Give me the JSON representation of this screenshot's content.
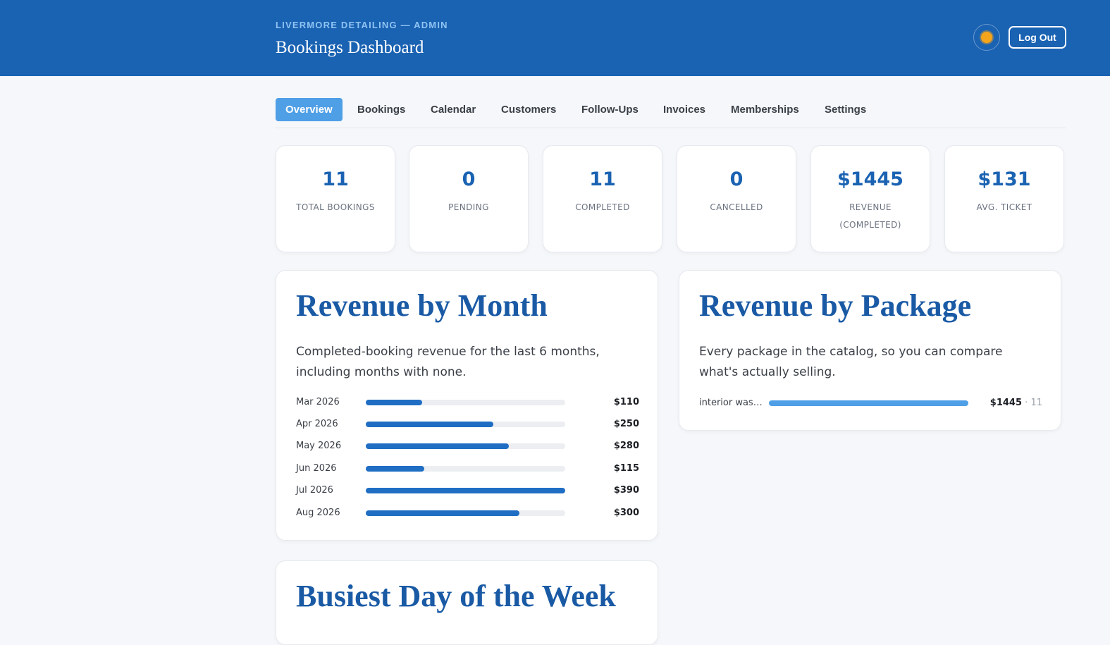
{
  "header": {
    "kicker": "LIVERMORE DETAILING — ADMIN",
    "title": "Bookings Dashboard",
    "theme_icon": "sun-icon",
    "logout_label": "Log Out"
  },
  "tabs": [
    {
      "label": "Overview",
      "active": true
    },
    {
      "label": "Bookings"
    },
    {
      "label": "Calendar"
    },
    {
      "label": "Customers"
    },
    {
      "label": "Follow-Ups"
    },
    {
      "label": "Invoices"
    },
    {
      "label": "Memberships"
    },
    {
      "label": "Settings"
    }
  ],
  "stats": [
    {
      "value": "11",
      "label": "TOTAL BOOKINGS"
    },
    {
      "value": "0",
      "label": "PENDING"
    },
    {
      "value": "11",
      "label": "COMPLETED"
    },
    {
      "value": "0",
      "label": "CANCELLED"
    },
    {
      "value": "$1445",
      "label": "REVENUE (COMPLETED)"
    },
    {
      "value": "$131",
      "label": "AVG. TICKET"
    }
  ],
  "revenue_by_month": {
    "title": "Revenue by Month",
    "description": "Completed-booking revenue for the last 6 months, including months with none.",
    "rows": [
      {
        "month": "Mar 2026",
        "amount": "$110",
        "value": 110
      },
      {
        "month": "Apr 2026",
        "amount": "$250",
        "value": 250
      },
      {
        "month": "May 2026",
        "amount": "$280",
        "value": 280
      },
      {
        "month": "Jun 2026",
        "amount": "$115",
        "value": 115
      },
      {
        "month": "Jul 2026",
        "amount": "$390",
        "value": 390
      },
      {
        "month": "Aug 2026",
        "amount": "$300",
        "value": 300
      }
    ],
    "max": 390
  },
  "revenue_by_package": {
    "title": "Revenue by Package",
    "description": "Every package in the catalog, so you can compare what's actually selling.",
    "rows": [
      {
        "label": "interior washi...",
        "amount": "$1445",
        "separator": "·",
        "count": "11",
        "fill_fraction": 1.0
      }
    ]
  },
  "busiest_day": {
    "title": "Busiest Day of the Week"
  },
  "colors": {
    "header_bg": "#1a62b2",
    "accent": "#4f9fe6",
    "month_bar": "#1f6ec4",
    "title_blue": "#1a5aa5"
  }
}
